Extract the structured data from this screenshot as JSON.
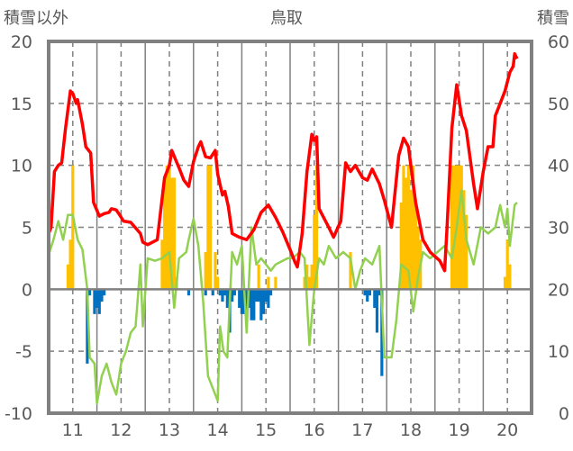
{
  "chart_data": {
    "type": "bar+line",
    "title": "鳥取",
    "ylabel_left": "積雪以外",
    "ylabel_right": "積雪",
    "ylim": [
      -10,
      20
    ],
    "y2lim": [
      0,
      60
    ],
    "yticks": [
      "20",
      "15",
      "10",
      "5",
      "0",
      "-5",
      "-10"
    ],
    "y2ticks": [
      "60",
      "50",
      "40",
      "30",
      "20",
      "10",
      "0"
    ],
    "xlim": [
      10.5,
      20.5
    ],
    "xticks": [
      "11",
      "12",
      "13",
      "14",
      "15",
      "16",
      "17",
      "18",
      "19",
      "20"
    ],
    "colors": {
      "positive_bars": "#FFC000",
      "negative_bars": "#0070C0",
      "red_line": "#FF0000",
      "green_line": "#92D050",
      "purple_line": "#7030A0",
      "frame": "#808080"
    },
    "positive_bars": [
      [
        10.9,
        2
      ],
      [
        10.95,
        4
      ],
      [
        11.0,
        10
      ],
      [
        12.85,
        4
      ],
      [
        12.9,
        9
      ],
      [
        12.95,
        10
      ],
      [
        13.0,
        10
      ],
      [
        13.05,
        9
      ],
      [
        13.1,
        9
      ],
      [
        13.15,
        1
      ],
      [
        13.75,
        3
      ],
      [
        13.8,
        10
      ],
      [
        13.85,
        10
      ],
      [
        13.95,
        3
      ],
      [
        14.0,
        1
      ],
      [
        14.85,
        2
      ],
      [
        15.05,
        1
      ],
      [
        15.2,
        1
      ],
      [
        15.8,
        1
      ],
      [
        15.85,
        2
      ],
      [
        15.9,
        1
      ],
      [
        15.95,
        2
      ],
      [
        16.0,
        6
      ],
      [
        16.05,
        10
      ],
      [
        16.75,
        3
      ],
      [
        17.8,
        7
      ],
      [
        17.85,
        10
      ],
      [
        17.9,
        9
      ],
      [
        17.95,
        10
      ],
      [
        18.0,
        8
      ],
      [
        18.05,
        10
      ],
      [
        18.1,
        7
      ],
      [
        18.15,
        5
      ],
      [
        18.2,
        4
      ],
      [
        18.85,
        10
      ],
      [
        18.9,
        10
      ],
      [
        18.95,
        10
      ],
      [
        19.0,
        10
      ],
      [
        19.05,
        10
      ],
      [
        19.1,
        8
      ],
      [
        19.15,
        6
      ],
      [
        19.95,
        1
      ],
      [
        20.0,
        4
      ],
      [
        20.05,
        2
      ]
    ],
    "negative_bars": [
      [
        11.3,
        -6
      ],
      [
        11.35,
        -0.5
      ],
      [
        11.45,
        -2
      ],
      [
        11.5,
        -1.5
      ],
      [
        11.55,
        -2
      ],
      [
        11.6,
        -1
      ],
      [
        11.65,
        -0.5
      ],
      [
        13.4,
        -0.5
      ],
      [
        13.75,
        -0.5
      ],
      [
        13.9,
        -0.5
      ],
      [
        14.05,
        -0.5
      ],
      [
        14.1,
        -1
      ],
      [
        14.15,
        -0.5
      ],
      [
        14.2,
        -1.5
      ],
      [
        14.25,
        -3.5
      ],
      [
        14.3,
        -1
      ],
      [
        14.35,
        -0.5
      ],
      [
        14.45,
        -1.5
      ],
      [
        14.5,
        -2
      ],
      [
        14.55,
        -2
      ],
      [
        14.6,
        -2
      ],
      [
        14.65,
        -1.5
      ],
      [
        14.7,
        -2.5
      ],
      [
        14.75,
        -2.5
      ],
      [
        14.8,
        -1
      ],
      [
        14.85,
        -1
      ],
      [
        14.9,
        -2.5
      ],
      [
        14.95,
        -2
      ],
      [
        15.0,
        -1
      ],
      [
        15.05,
        -1.5
      ],
      [
        15.1,
        -0.5
      ],
      [
        17.05,
        -0.5
      ],
      [
        17.1,
        -1
      ],
      [
        17.15,
        -0.5
      ],
      [
        17.25,
        -1.5
      ],
      [
        17.3,
        -3.5
      ],
      [
        17.35,
        -0.5
      ],
      [
        17.4,
        -7
      ]
    ],
    "red_line": [
      [
        10.5,
        4.5
      ],
      [
        10.55,
        5
      ],
      [
        10.62,
        9.5
      ],
      [
        10.7,
        10
      ],
      [
        10.77,
        10.2
      ],
      [
        10.85,
        13
      ],
      [
        10.95,
        16
      ],
      [
        11.0,
        15.8
      ],
      [
        11.07,
        15
      ],
      [
        11.1,
        15.3
      ],
      [
        11.2,
        13.3
      ],
      [
        11.27,
        11.5
      ],
      [
        11.37,
        11
      ],
      [
        11.43,
        7
      ],
      [
        11.55,
        5.9
      ],
      [
        11.65,
        6.1
      ],
      [
        11.75,
        6.2
      ],
      [
        11.8,
        6.5
      ],
      [
        11.9,
        6.4
      ],
      [
        11.97,
        6
      ],
      [
        12.05,
        5.5
      ],
      [
        12.2,
        5.4
      ],
      [
        12.4,
        4.5
      ],
      [
        12.45,
        3.8
      ],
      [
        12.55,
        3.6
      ],
      [
        12.75,
        4
      ],
      [
        12.9,
        9
      ],
      [
        13.0,
        10
      ],
      [
        13.05,
        11.2
      ],
      [
        13.2,
        9.8
      ],
      [
        13.3,
        8.8
      ],
      [
        13.4,
        8.3
      ],
      [
        13.5,
        10.3
      ],
      [
        13.6,
        11.5
      ],
      [
        13.65,
        11.9
      ],
      [
        13.75,
        10.7
      ],
      [
        13.85,
        10.6
      ],
      [
        13.95,
        11.2
      ],
      [
        14.0,
        9.3
      ],
      [
        14.1,
        7.6
      ],
      [
        14.15,
        7.9
      ],
      [
        14.22,
        6.7
      ],
      [
        14.3,
        4.5
      ],
      [
        14.45,
        4.2
      ],
      [
        14.6,
        4.0
      ],
      [
        14.75,
        4.8
      ],
      [
        14.9,
        6.2
      ],
      [
        15.05,
        6.8
      ],
      [
        15.2,
        5.8
      ],
      [
        15.35,
        4.6
      ],
      [
        15.5,
        3.2
      ],
      [
        15.6,
        2.2
      ],
      [
        15.65,
        1.8
      ],
      [
        15.75,
        4.5
      ],
      [
        15.85,
        9.5
      ],
      [
        15.95,
        12.5
      ],
      [
        16.0,
        12
      ],
      [
        16.05,
        12.3
      ],
      [
        16.1,
        6.5
      ],
      [
        16.3,
        5
      ],
      [
        16.4,
        4.2
      ],
      [
        16.55,
        5.5
      ],
      [
        16.65,
        10.2
      ],
      [
        16.75,
        9.5
      ],
      [
        16.85,
        10
      ],
      [
        17.0,
        9
      ],
      [
        17.1,
        8.8
      ],
      [
        17.2,
        9.7
      ],
      [
        17.35,
        8.5
      ],
      [
        17.45,
        7.2
      ],
      [
        17.6,
        5
      ],
      [
        17.75,
        10.8
      ],
      [
        17.85,
        12.2
      ],
      [
        17.95,
        11.5
      ],
      [
        18.1,
        7
      ],
      [
        18.25,
        4
      ],
      [
        18.4,
        3
      ],
      [
        18.6,
        2.3
      ],
      [
        18.7,
        1.5
      ],
      [
        18.75,
        5
      ],
      [
        18.85,
        13
      ],
      [
        18.95,
        16.5
      ],
      [
        19.05,
        14
      ],
      [
        19.15,
        12.8
      ],
      [
        19.3,
        8.5
      ],
      [
        19.38,
        6.5
      ],
      [
        19.5,
        9.5
      ],
      [
        19.6,
        11.5
      ],
      [
        19.7,
        11.5
      ],
      [
        19.75,
        14
      ],
      [
        19.85,
        15
      ],
      [
        19.95,
        16
      ],
      [
        20.05,
        17.5
      ],
      [
        20.12,
        18
      ],
      [
        20.15,
        19
      ],
      [
        20.2,
        18.6
      ]
    ],
    "green_line": [
      [
        10.5,
        2.8
      ],
      [
        10.6,
        4
      ],
      [
        10.7,
        5.5
      ],
      [
        10.8,
        4
      ],
      [
        10.9,
        6
      ],
      [
        11.0,
        6
      ],
      [
        11.1,
        4
      ],
      [
        11.2,
        3.2
      ],
      [
        11.3,
        0
      ],
      [
        11.35,
        -5.5
      ],
      [
        11.45,
        -6
      ],
      [
        11.5,
        -9.2
      ],
      [
        11.6,
        -7
      ],
      [
        11.7,
        -6
      ],
      [
        11.8,
        -7.5
      ],
      [
        11.9,
        -8.5
      ],
      [
        12.0,
        -6
      ],
      [
        12.1,
        -5
      ],
      [
        12.2,
        -3.5
      ],
      [
        12.3,
        -3
      ],
      [
        12.4,
        2
      ],
      [
        12.45,
        -3
      ],
      [
        12.55,
        2.5
      ],
      [
        12.7,
        2.3
      ],
      [
        12.85,
        2.5
      ],
      [
        13.0,
        3
      ],
      [
        13.1,
        -1.5
      ],
      [
        13.2,
        2.5
      ],
      [
        13.35,
        3
      ],
      [
        13.4,
        4
      ],
      [
        13.5,
        5.7
      ],
      [
        13.6,
        3.5
      ],
      [
        13.7,
        -1
      ],
      [
        13.8,
        -7
      ],
      [
        13.9,
        -8
      ],
      [
        14.0,
        -9
      ],
      [
        14.05,
        -3
      ],
      [
        14.12,
        -5
      ],
      [
        14.2,
        -5.5
      ],
      [
        14.25,
        -1
      ],
      [
        14.3,
        3
      ],
      [
        14.4,
        2
      ],
      [
        14.5,
        3.5
      ],
      [
        14.6,
        -3.5
      ],
      [
        14.7,
        5
      ],
      [
        14.8,
        2
      ],
      [
        14.9,
        2.5
      ],
      [
        15.1,
        1.5
      ],
      [
        15.2,
        2
      ],
      [
        15.3,
        2.2
      ],
      [
        15.45,
        2.5
      ],
      [
        15.55,
        2.5
      ],
      [
        15.7,
        3
      ],
      [
        15.8,
        2.5
      ],
      [
        15.9,
        -4.5
      ],
      [
        16.0,
        0
      ],
      [
        16.1,
        2.5
      ],
      [
        16.2,
        2
      ],
      [
        16.3,
        3.5
      ],
      [
        16.45,
        2.5
      ],
      [
        16.6,
        3
      ],
      [
        16.75,
        2.5
      ],
      [
        16.85,
        0
      ],
      [
        16.95,
        1.5
      ],
      [
        17.05,
        2.5
      ],
      [
        17.2,
        2
      ],
      [
        17.35,
        3.5
      ],
      [
        17.45,
        -5.5
      ],
      [
        17.6,
        -5.5
      ],
      [
        17.7,
        -2.5
      ],
      [
        17.8,
        2
      ],
      [
        17.95,
        1.5
      ],
      [
        18.05,
        -1.8
      ],
      [
        18.15,
        1
      ],
      [
        18.25,
        3
      ],
      [
        18.4,
        2.5
      ],
      [
        18.55,
        3
      ],
      [
        18.7,
        3.5
      ],
      [
        18.85,
        2.5
      ],
      [
        18.95,
        5
      ],
      [
        19.05,
        8
      ],
      [
        19.15,
        4
      ],
      [
        19.3,
        2
      ],
      [
        19.45,
        5
      ],
      [
        19.6,
        4.5
      ],
      [
        19.75,
        5
      ],
      [
        19.85,
        6.8
      ],
      [
        19.95,
        5
      ],
      [
        20.0,
        6.5
      ],
      [
        20.05,
        3.5
      ],
      [
        20.15,
        6.8
      ],
      [
        20.2,
        7
      ]
    ],
    "purple_line": [
      [
        10.5,
        -10
      ],
      [
        20.2,
        -10
      ]
    ]
  }
}
